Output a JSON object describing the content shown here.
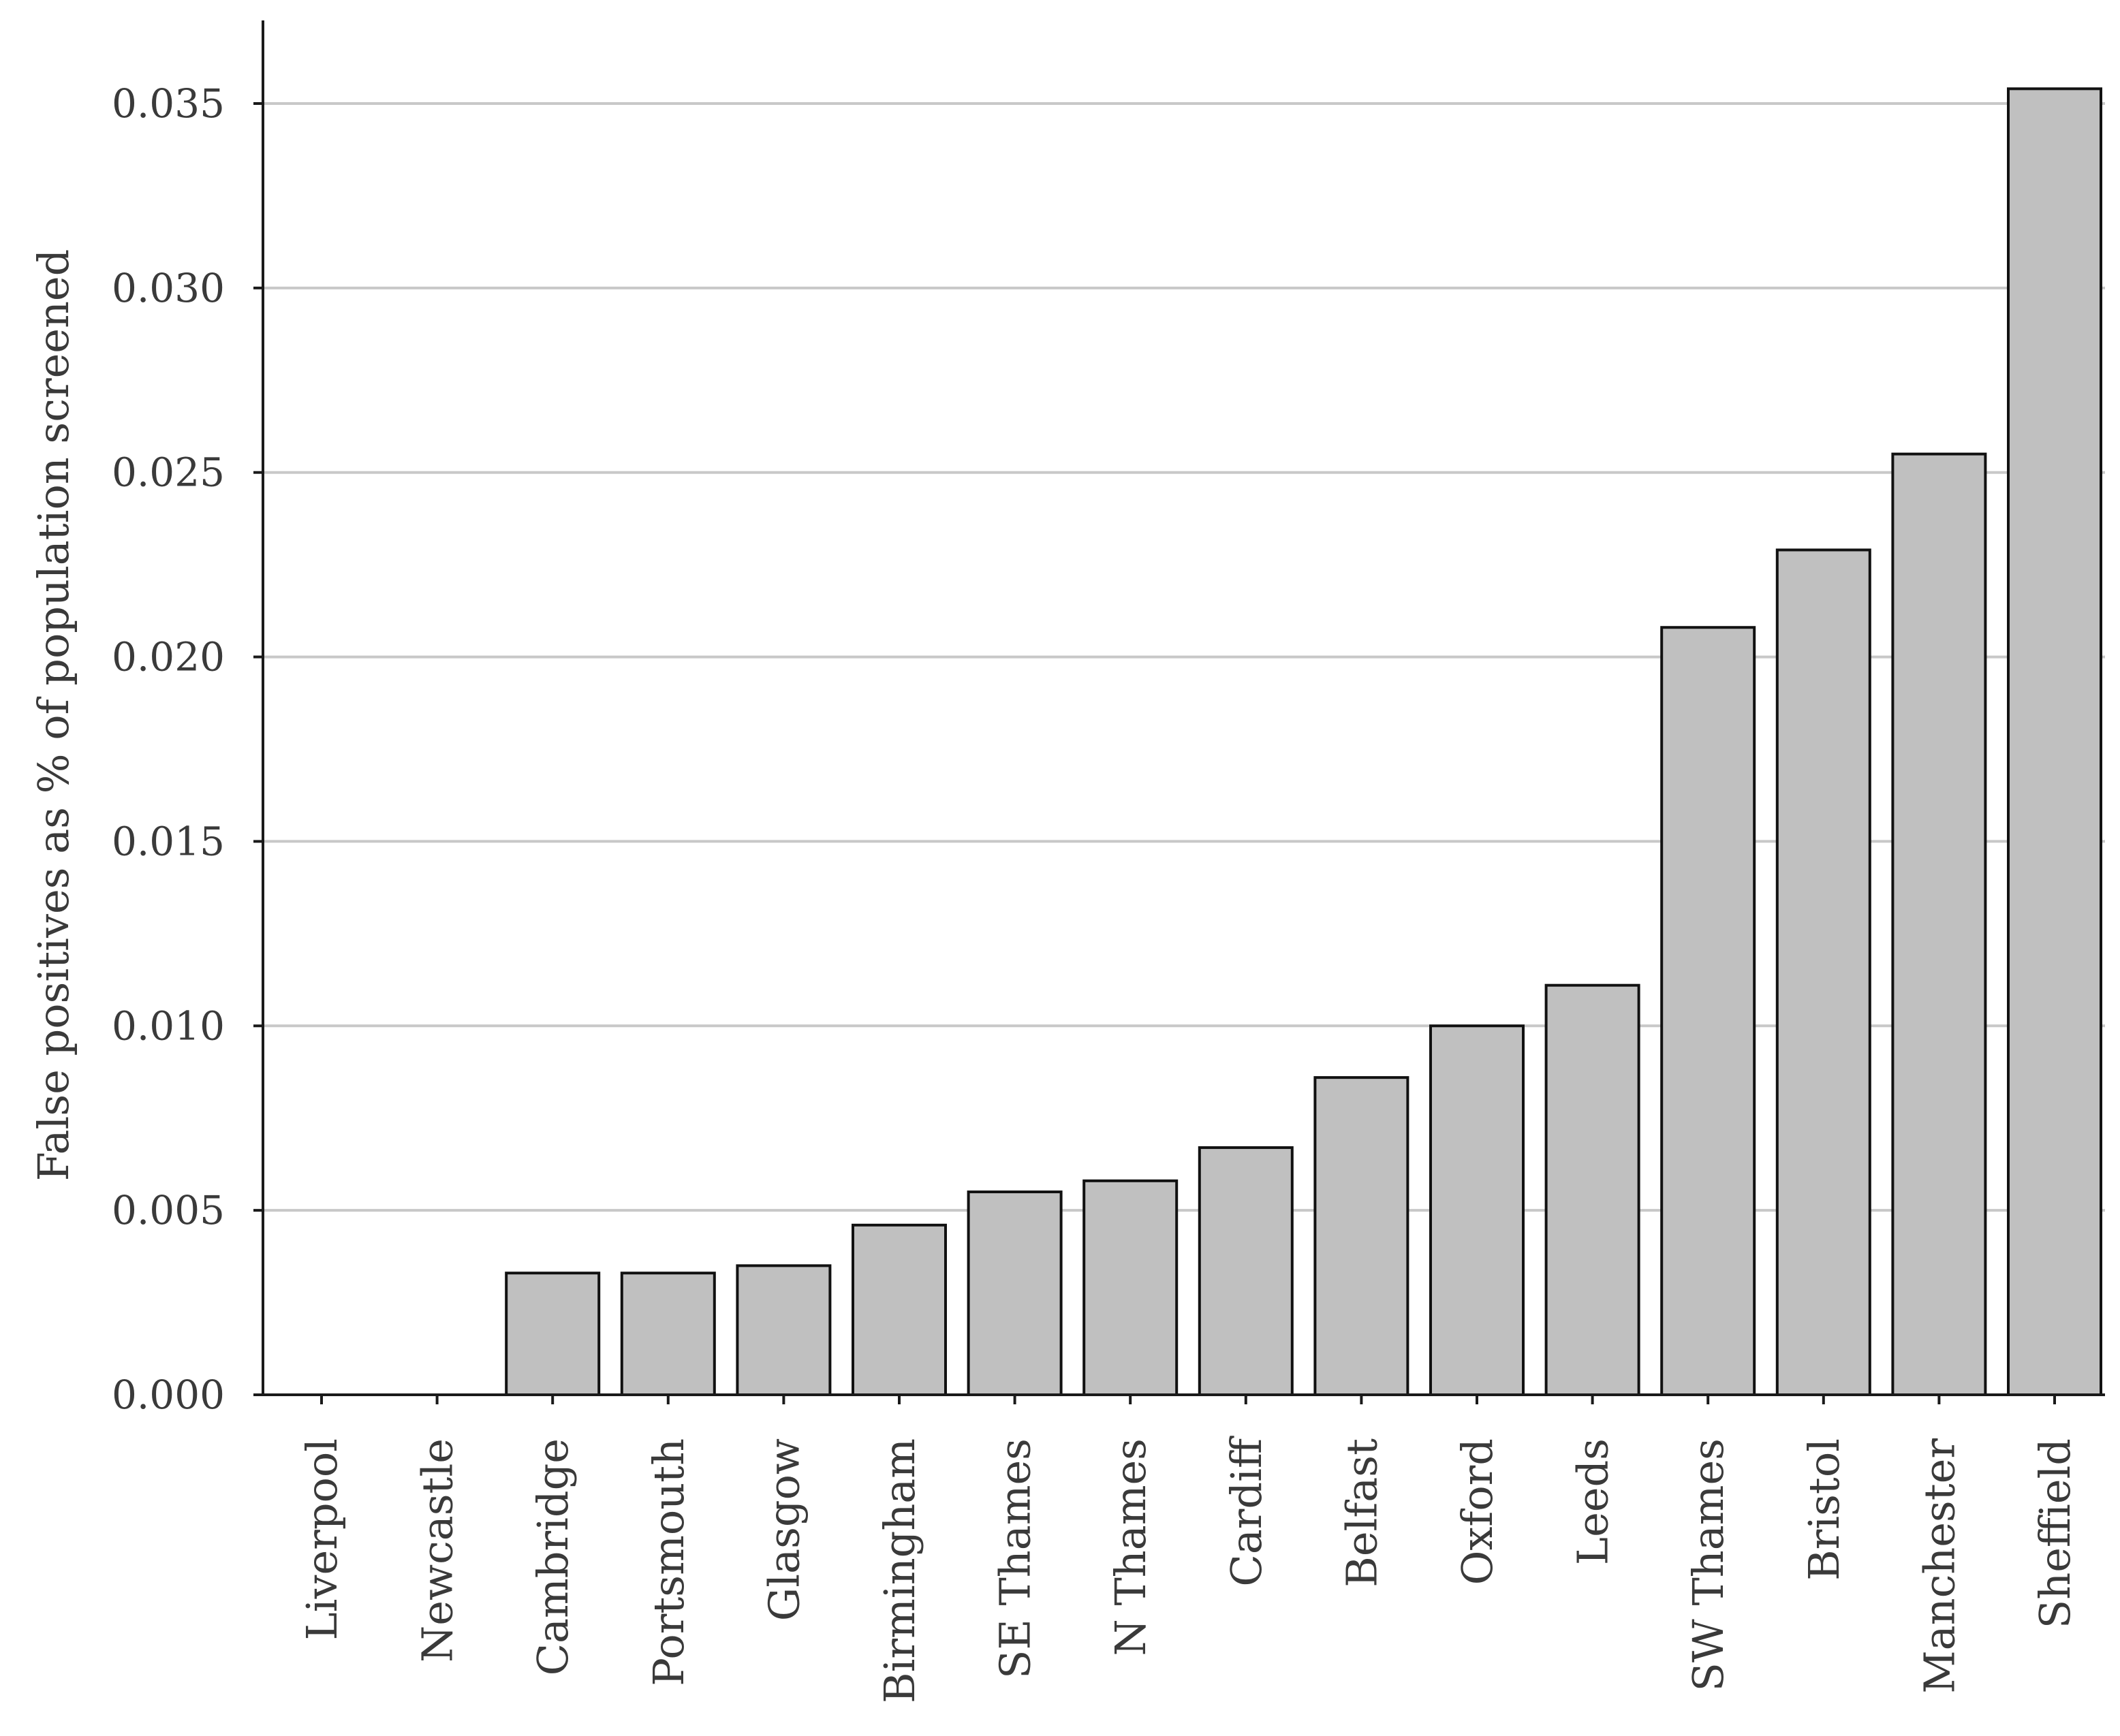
{
  "chart_data": {
    "type": "bar",
    "title": "",
    "xlabel": "",
    "ylabel": "False positives as % of population screened",
    "ylim": [
      0,
      0.035
    ],
    "yticks": [
      "0.000",
      "0.005",
      "0.010",
      "0.015",
      "0.020",
      "0.025",
      "0.030",
      "0.035"
    ],
    "grid": true,
    "legend": "none",
    "colors": {
      "bar_fill": "#c0c0c0",
      "bar_stroke": "#111111",
      "grid": "#c8c8c8",
      "text": "#3a3a3a"
    },
    "categories": [
      "Liverpool",
      "Newcastle",
      "Cambridge",
      "Portsmouth",
      "Glasgow",
      "Birmingham",
      "SE Thames",
      "N Thames",
      "Cardiff",
      "Belfast",
      "Oxford",
      "Leeds",
      "SW Thames",
      "Bristol",
      "Manchester",
      "Sheffield"
    ],
    "values": [
      0.0,
      0.0,
      0.0033,
      0.0033,
      0.0035,
      0.0046,
      0.0055,
      0.0058,
      0.0067,
      0.0086,
      0.01,
      0.0111,
      0.0208,
      0.0229,
      0.0255,
      0.0354
    ]
  }
}
